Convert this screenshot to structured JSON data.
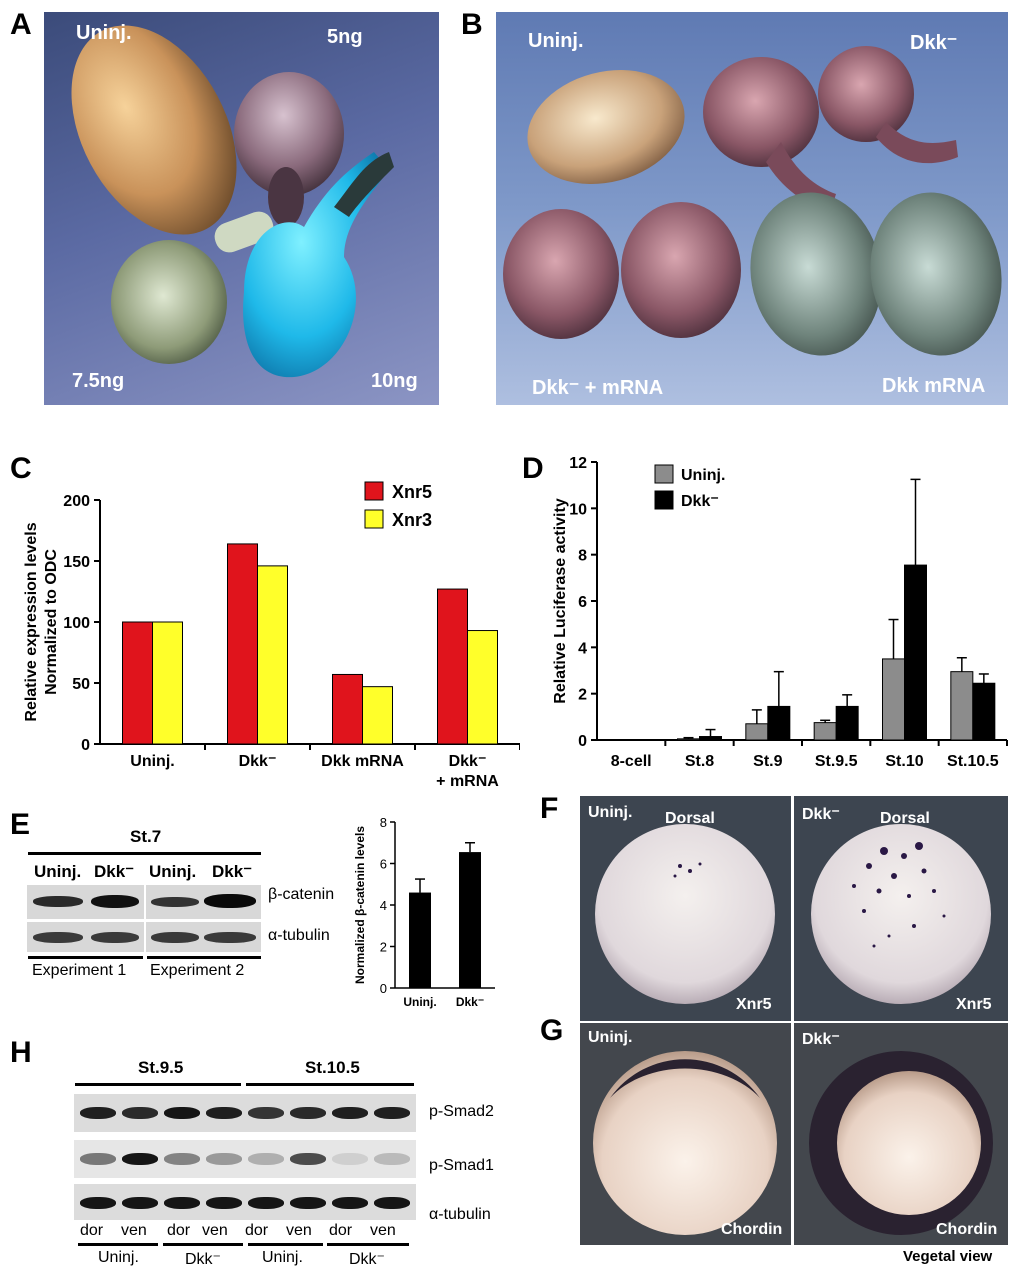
{
  "panels": {
    "A": {
      "label": "A",
      "uninj": "Uninj.",
      "dose5": "5ng",
      "dose75": "7.5ng",
      "dose10": "10ng"
    },
    "B": {
      "label": "B",
      "uninj": "Uninj.",
      "dkk": "Dkk⁻",
      "dkk_mrna_rescue": "Dkk⁻ + mRNA",
      "dkk_mrna": "Dkk mRNA"
    },
    "C": {
      "label": "C"
    },
    "D": {
      "label": "D"
    },
    "E": {
      "label": "E",
      "stage": "St.7",
      "lanes": [
        "Uninj.",
        "Dkk⁻",
        "Uninj.",
        "Dkk⁻"
      ],
      "rows": [
        "β-catenin",
        "α-tubulin"
      ],
      "experiments": [
        "Experiment 1",
        "Experiment 2"
      ]
    },
    "F": {
      "label": "F",
      "left_cond": "Uninj.",
      "right_cond": "Dkk⁻",
      "view_left": "Dorsal",
      "view_right": "Dorsal",
      "marker": "Xnr5"
    },
    "G": {
      "label": "G",
      "left_cond": "Uninj.",
      "right_cond": "Dkk⁻",
      "marker": "Chordin",
      "view": "Vegetal view"
    },
    "H": {
      "label": "H",
      "stages": [
        "St.9.5",
        "St.10.5"
      ],
      "rows": [
        "p-Smad2",
        "p-Smad1",
        "α-tubulin"
      ],
      "lanes": [
        "dor",
        "ven",
        "dor",
        "ven",
        "dor",
        "ven",
        "dor",
        "ven"
      ],
      "groups": [
        "Uninj.",
        "Dkk⁻",
        "Uninj.",
        "Dkk⁻"
      ]
    }
  },
  "chart_data": [
    {
      "id": "C",
      "type": "bar",
      "ylabel": "Relative expression levels Normalized to ODC",
      "ylabel_line1": "Relative expression levels",
      "ylabel_line2": "Normalized to ODC",
      "ylim": [
        0,
        200
      ],
      "yticks": [
        0,
        50,
        100,
        150,
        200
      ],
      "categories": [
        "Uninj.",
        "Dkk⁻",
        "Dkk mRNA",
        "Dkk⁻"
      ],
      "category_sub": [
        "",
        "",
        "",
        "+ mRNA"
      ],
      "series": [
        {
          "name": "Xnr5",
          "color": "#e0141c",
          "values": [
            100,
            164,
            57,
            127
          ]
        },
        {
          "name": "Xnr3",
          "color": "#ffff2a",
          "values": [
            100,
            146,
            47,
            93
          ]
        }
      ]
    },
    {
      "id": "D",
      "type": "bar",
      "ylabel": "Relative Luciferase activity",
      "ylim": [
        0,
        12
      ],
      "yticks": [
        0,
        2,
        4,
        6,
        8,
        10,
        12
      ],
      "categories": [
        "8-cell",
        "St.8",
        "St.9",
        "St.9.5",
        "St.10",
        "St.10.5"
      ],
      "series": [
        {
          "name": "Uninj.",
          "color": "#8c8c8c",
          "values": [
            0,
            0.05,
            0.7,
            0.75,
            3.5,
            2.95
          ],
          "errors": [
            0,
            0.05,
            0.6,
            0.1,
            1.7,
            0.6
          ]
        },
        {
          "name": "Dkk⁻",
          "color": "#000000",
          "values": [
            0,
            0.15,
            1.45,
            1.45,
            7.55,
            2.45
          ],
          "errors": [
            0,
            0.3,
            1.5,
            0.5,
            3.7,
            0.4
          ]
        }
      ]
    },
    {
      "id": "E-inset",
      "type": "bar",
      "ylabel": "Normalized β-catenin levels",
      "ylim": [
        0,
        8
      ],
      "yticks": [
        0,
        2,
        4,
        6,
        8
      ],
      "categories": [
        "Uninj.",
        "Dkk⁻"
      ],
      "values": [
        4.6,
        6.55
      ],
      "errors": [
        0.65,
        0.45
      ],
      "color": "#000000"
    }
  ]
}
